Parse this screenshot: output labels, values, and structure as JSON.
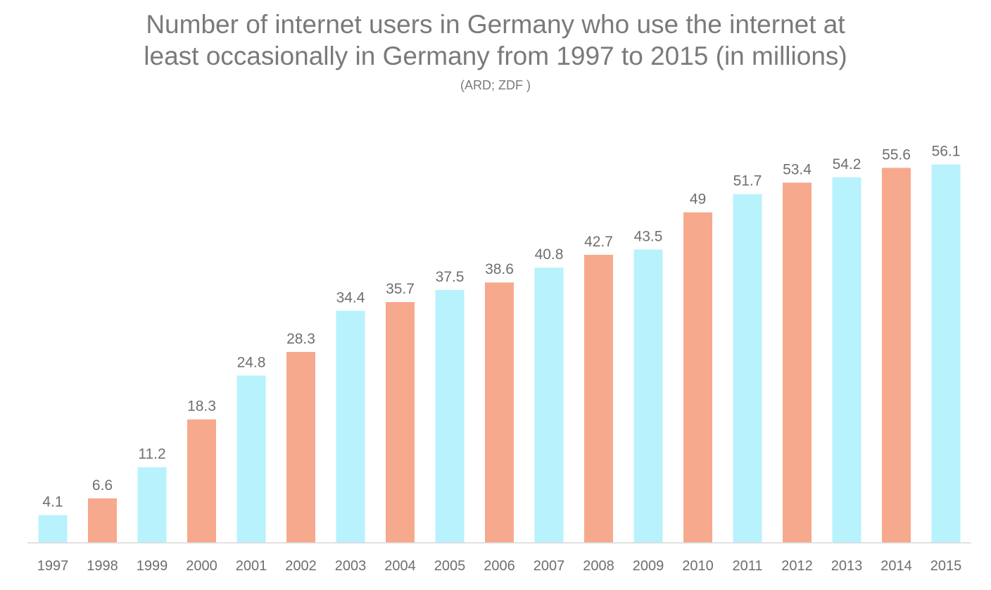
{
  "chart_data": {
    "type": "bar",
    "title": "Number of internet users in Germany who use the internet at\nleast occasionally in Germany from 1997 to 2015 (in millions)",
    "subtitle": "(ARD; ZDF )",
    "xlabel": "",
    "ylabel": "",
    "ylim": [
      0,
      60
    ],
    "grid": false,
    "categories": [
      "1997",
      "1998",
      "1999",
      "2000",
      "2001",
      "2002",
      "2003",
      "2004",
      "2005",
      "2006",
      "2007",
      "2008",
      "2009",
      "2010",
      "2011",
      "2012",
      "2013",
      "2014",
      "2015"
    ],
    "values": [
      4.1,
      6.6,
      11.2,
      18.3,
      24.8,
      28.3,
      34.4,
      35.7,
      37.5,
      38.6,
      40.8,
      42.7,
      43.5,
      49,
      51.7,
      53.4,
      54.2,
      55.6,
      56.1
    ],
    "value_labels": [
      "4.1",
      "6.6",
      "11.2",
      "18.3",
      "24.8",
      "28.3",
      "34.4",
      "35.7",
      "37.5",
      "38.6",
      "40.8",
      "42.7",
      "43.5",
      "49",
      "51.7",
      "53.4",
      "54.2",
      "55.6",
      "56.1"
    ],
    "bar_colors": [
      "#b8f2fc",
      "#f7a98d",
      "#b8f2fc",
      "#f7a98d",
      "#b8f2fc",
      "#f7a98d",
      "#b8f2fc",
      "#f7a98d",
      "#b8f2fc",
      "#f7a98d",
      "#b8f2fc",
      "#f7a98d",
      "#b8f2fc",
      "#f7a98d",
      "#b8f2fc",
      "#f7a98d",
      "#b8f2fc",
      "#f7a98d",
      "#b8f2fc"
    ],
    "axis_color": "#d9d9d9",
    "text_color": "#6f6f6f"
  }
}
